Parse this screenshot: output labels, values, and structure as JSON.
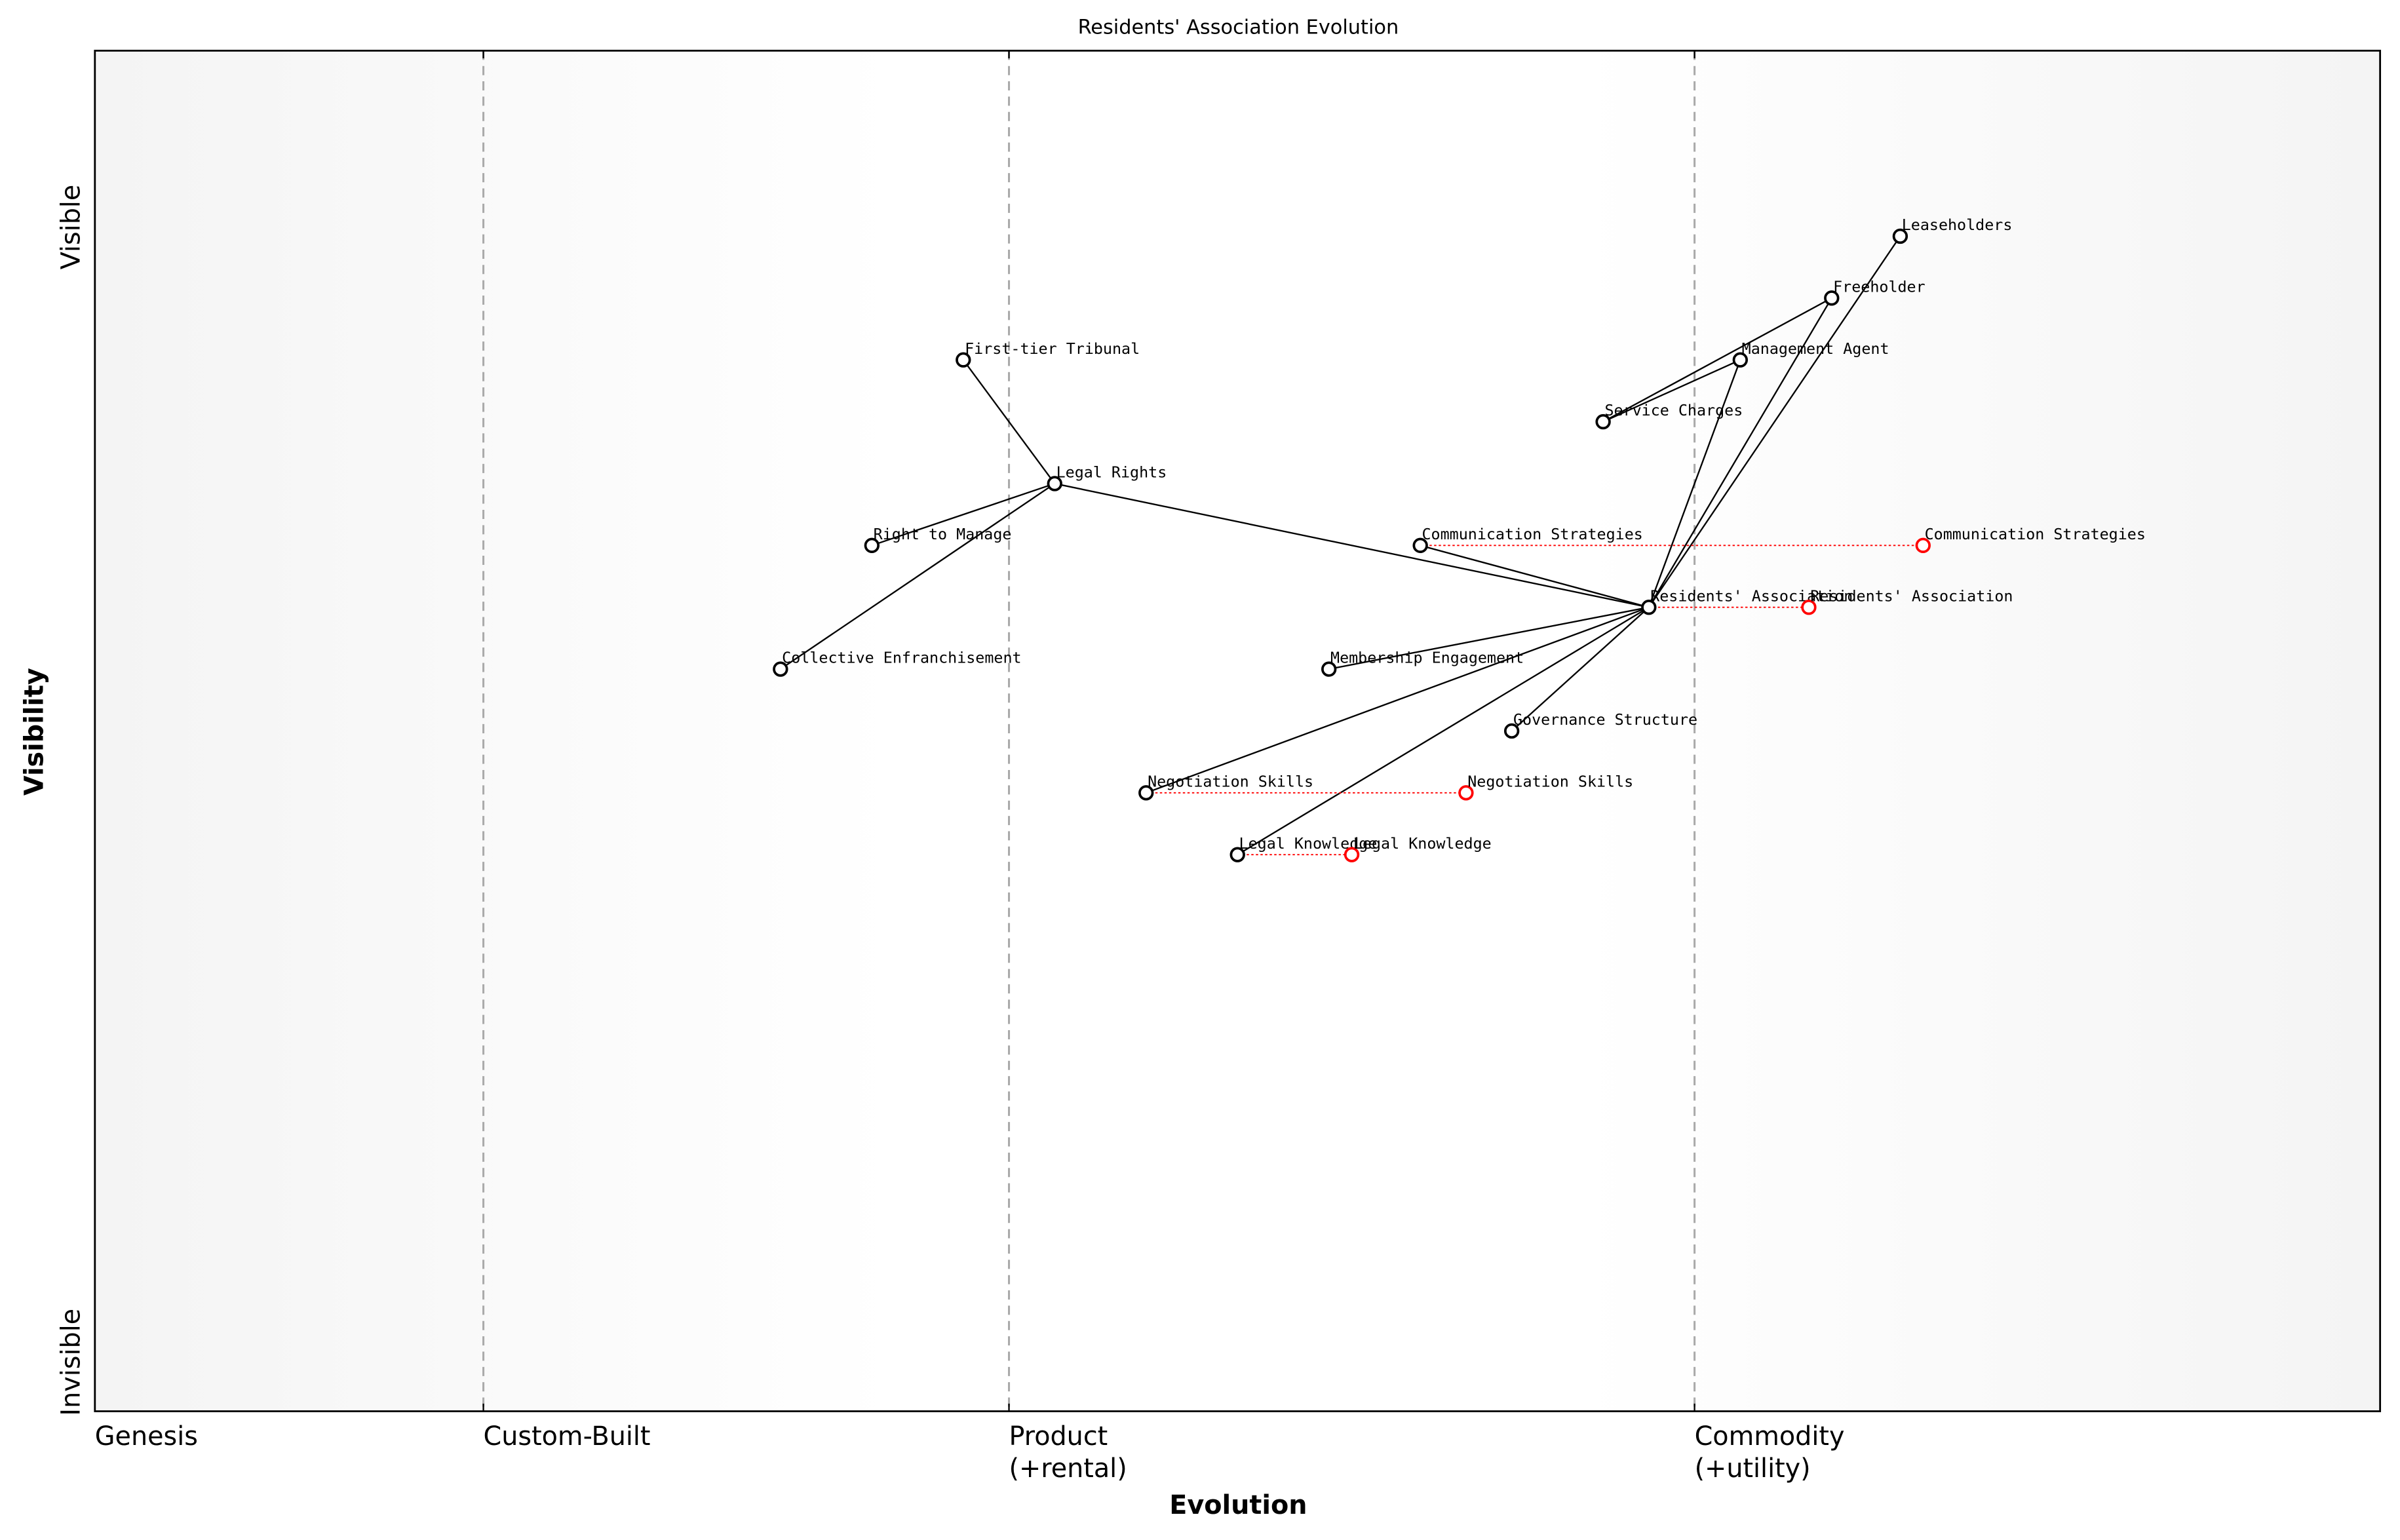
{
  "chart_data": {
    "type": "wardley",
    "title": "Residents' Association Evolution",
    "xlabel": "Evolution",
    "ylabel": "Visibility",
    "visibility_labels": [
      "Visible",
      "Invisible"
    ],
    "xlim": [
      0,
      1
    ],
    "ylim": [
      0,
      1.1
    ],
    "xticks": [
      {
        "value": 0,
        "label": [
          "Genesis"
        ]
      },
      {
        "value": 0.17,
        "label": [
          "Custom-Built"
        ]
      },
      {
        "value": 0.4,
        "label": [
          "Product",
          "(+rental)"
        ]
      },
      {
        "value": 0.7,
        "label": [
          "Commodity",
          "(+utility)"
        ]
      }
    ],
    "components": [
      {
        "name": "Leaseholders",
        "x": 0.79,
        "y": 0.95
      },
      {
        "name": "Freeholder",
        "x": 0.76,
        "y": 0.9
      },
      {
        "name": "Management Agent",
        "x": 0.72,
        "y": 0.85
      },
      {
        "name": "Service Charges",
        "x": 0.66,
        "y": 0.8
      },
      {
        "name": "First-tier Tribunal",
        "x": 0.38,
        "y": 0.85
      },
      {
        "name": "Legal Rights",
        "x": 0.42,
        "y": 0.75
      },
      {
        "name": "Right to Manage",
        "x": 0.34,
        "y": 0.7
      },
      {
        "name": "Collective Enfranchisement",
        "x": 0.3,
        "y": 0.6
      },
      {
        "name": "Communication Strategies",
        "x": 0.58,
        "y": 0.7
      },
      {
        "name": "Residents' Association",
        "x": 0.68,
        "y": 0.65
      },
      {
        "name": "Membership Engagement",
        "x": 0.54,
        "y": 0.6
      },
      {
        "name": "Governance Structure",
        "x": 0.62,
        "y": 0.55
      },
      {
        "name": "Negotiation Skills",
        "x": 0.46,
        "y": 0.5
      },
      {
        "name": "Legal Knowledge",
        "x": 0.5,
        "y": 0.45
      }
    ],
    "links": [
      [
        0,
        9
      ],
      [
        1,
        9
      ],
      [
        1,
        3
      ],
      [
        2,
        3
      ],
      [
        2,
        9
      ],
      [
        4,
        5
      ],
      [
        5,
        6
      ],
      [
        5,
        7
      ],
      [
        5,
        9
      ],
      [
        8,
        9
      ],
      [
        10,
        9
      ],
      [
        11,
        9
      ],
      [
        12,
        9
      ],
      [
        13,
        9
      ]
    ],
    "evolved": [
      {
        "name": "Communication Strategies",
        "x": 0.8,
        "y": 0.7
      },
      {
        "name": "Residents' Association",
        "x": 0.75,
        "y": 0.65
      },
      {
        "name": "Negotiation Skills",
        "x": 0.6,
        "y": 0.5
      },
      {
        "name": "Legal Knowledge",
        "x": 0.55,
        "y": 0.45
      }
    ],
    "component_color": "#000000",
    "evolved_color": "#ff0000"
  }
}
